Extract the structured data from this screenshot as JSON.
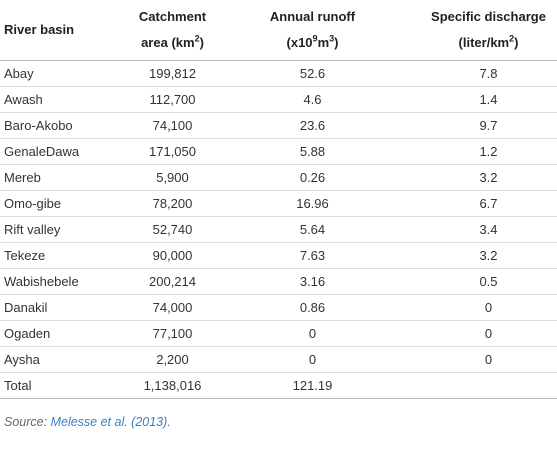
{
  "table": {
    "header": [
      [
        [
          {
            "t": "River basin"
          }
        ]
      ],
      [
        [
          {
            "t": "Catchment"
          }
        ],
        [
          {
            "t": "area (km"
          },
          {
            "t": "2",
            "sup": true
          },
          {
            "t": ")"
          }
        ]
      ],
      [
        [
          {
            "t": "Annual runoff"
          }
        ],
        [
          {
            "t": "(x10"
          },
          {
            "t": "9",
            "sup": true
          },
          {
            "t": "m"
          },
          {
            "t": "3",
            "sup": true
          },
          {
            "t": ")"
          }
        ]
      ],
      [
        [
          {
            "t": "Specific discharge"
          }
        ],
        [
          {
            "t": "(liter/km"
          },
          {
            "t": "2",
            "sup": true
          },
          {
            "t": ")"
          }
        ]
      ]
    ],
    "rows": [
      [
        "Abay",
        "199,812",
        "52.6",
        "7.8"
      ],
      [
        "Awash",
        "112,700",
        "4.6",
        "1.4"
      ],
      [
        "Baro-Akobo",
        "74,100",
        "23.6",
        "9.7"
      ],
      [
        "GenaleDawa",
        "171,050",
        "5.88",
        "1.2"
      ],
      [
        "Mereb",
        "5,900",
        "0.26",
        "3.2"
      ],
      [
        "Omo-gibe",
        "78,200",
        "16.96",
        "6.7"
      ],
      [
        "Rift valley",
        "52,740",
        "5.64",
        "3.4"
      ],
      [
        "Tekeze",
        "90,000",
        "7.63",
        "3.2"
      ],
      [
        "Wabishebele",
        "200,214",
        "3.16",
        "0.5"
      ],
      [
        "Danakil",
        "74,000",
        "0.86",
        "0"
      ],
      [
        "Ogaden",
        "77,100",
        "0",
        "0"
      ],
      [
        "Aysha",
        "2,200",
        "0",
        "0"
      ],
      [
        "Total",
        "1,138,016",
        "121.19"
      ]
    ]
  },
  "source": {
    "label": "Source:",
    "ref": "Melesse et al. (2013)."
  }
}
